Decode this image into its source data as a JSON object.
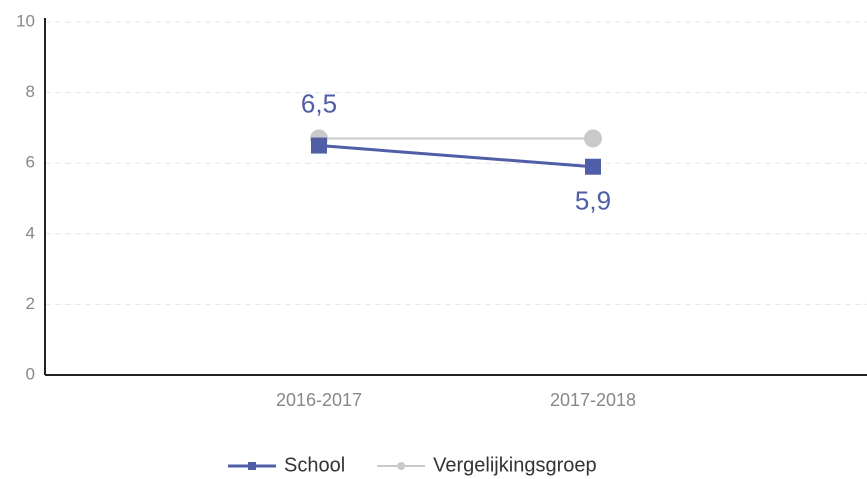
{
  "chart_data": {
    "type": "line",
    "categories": [
      "2016-2017",
      "2017-2018"
    ],
    "series": [
      {
        "name": "School",
        "color": "#4f5ea6",
        "values": [
          6.5,
          5.9
        ],
        "value_labels": [
          "6,5",
          "5,9"
        ]
      },
      {
        "name": "Vergelijkingsgroep",
        "color": "#c9c9c9",
        "values": [
          6.7,
          6.7
        ]
      }
    ],
    "ylim": [
      0,
      10
    ],
    "yticks": [
      0,
      2,
      4,
      6,
      8,
      10
    ],
    "grid": true,
    "legend": "bottom"
  }
}
